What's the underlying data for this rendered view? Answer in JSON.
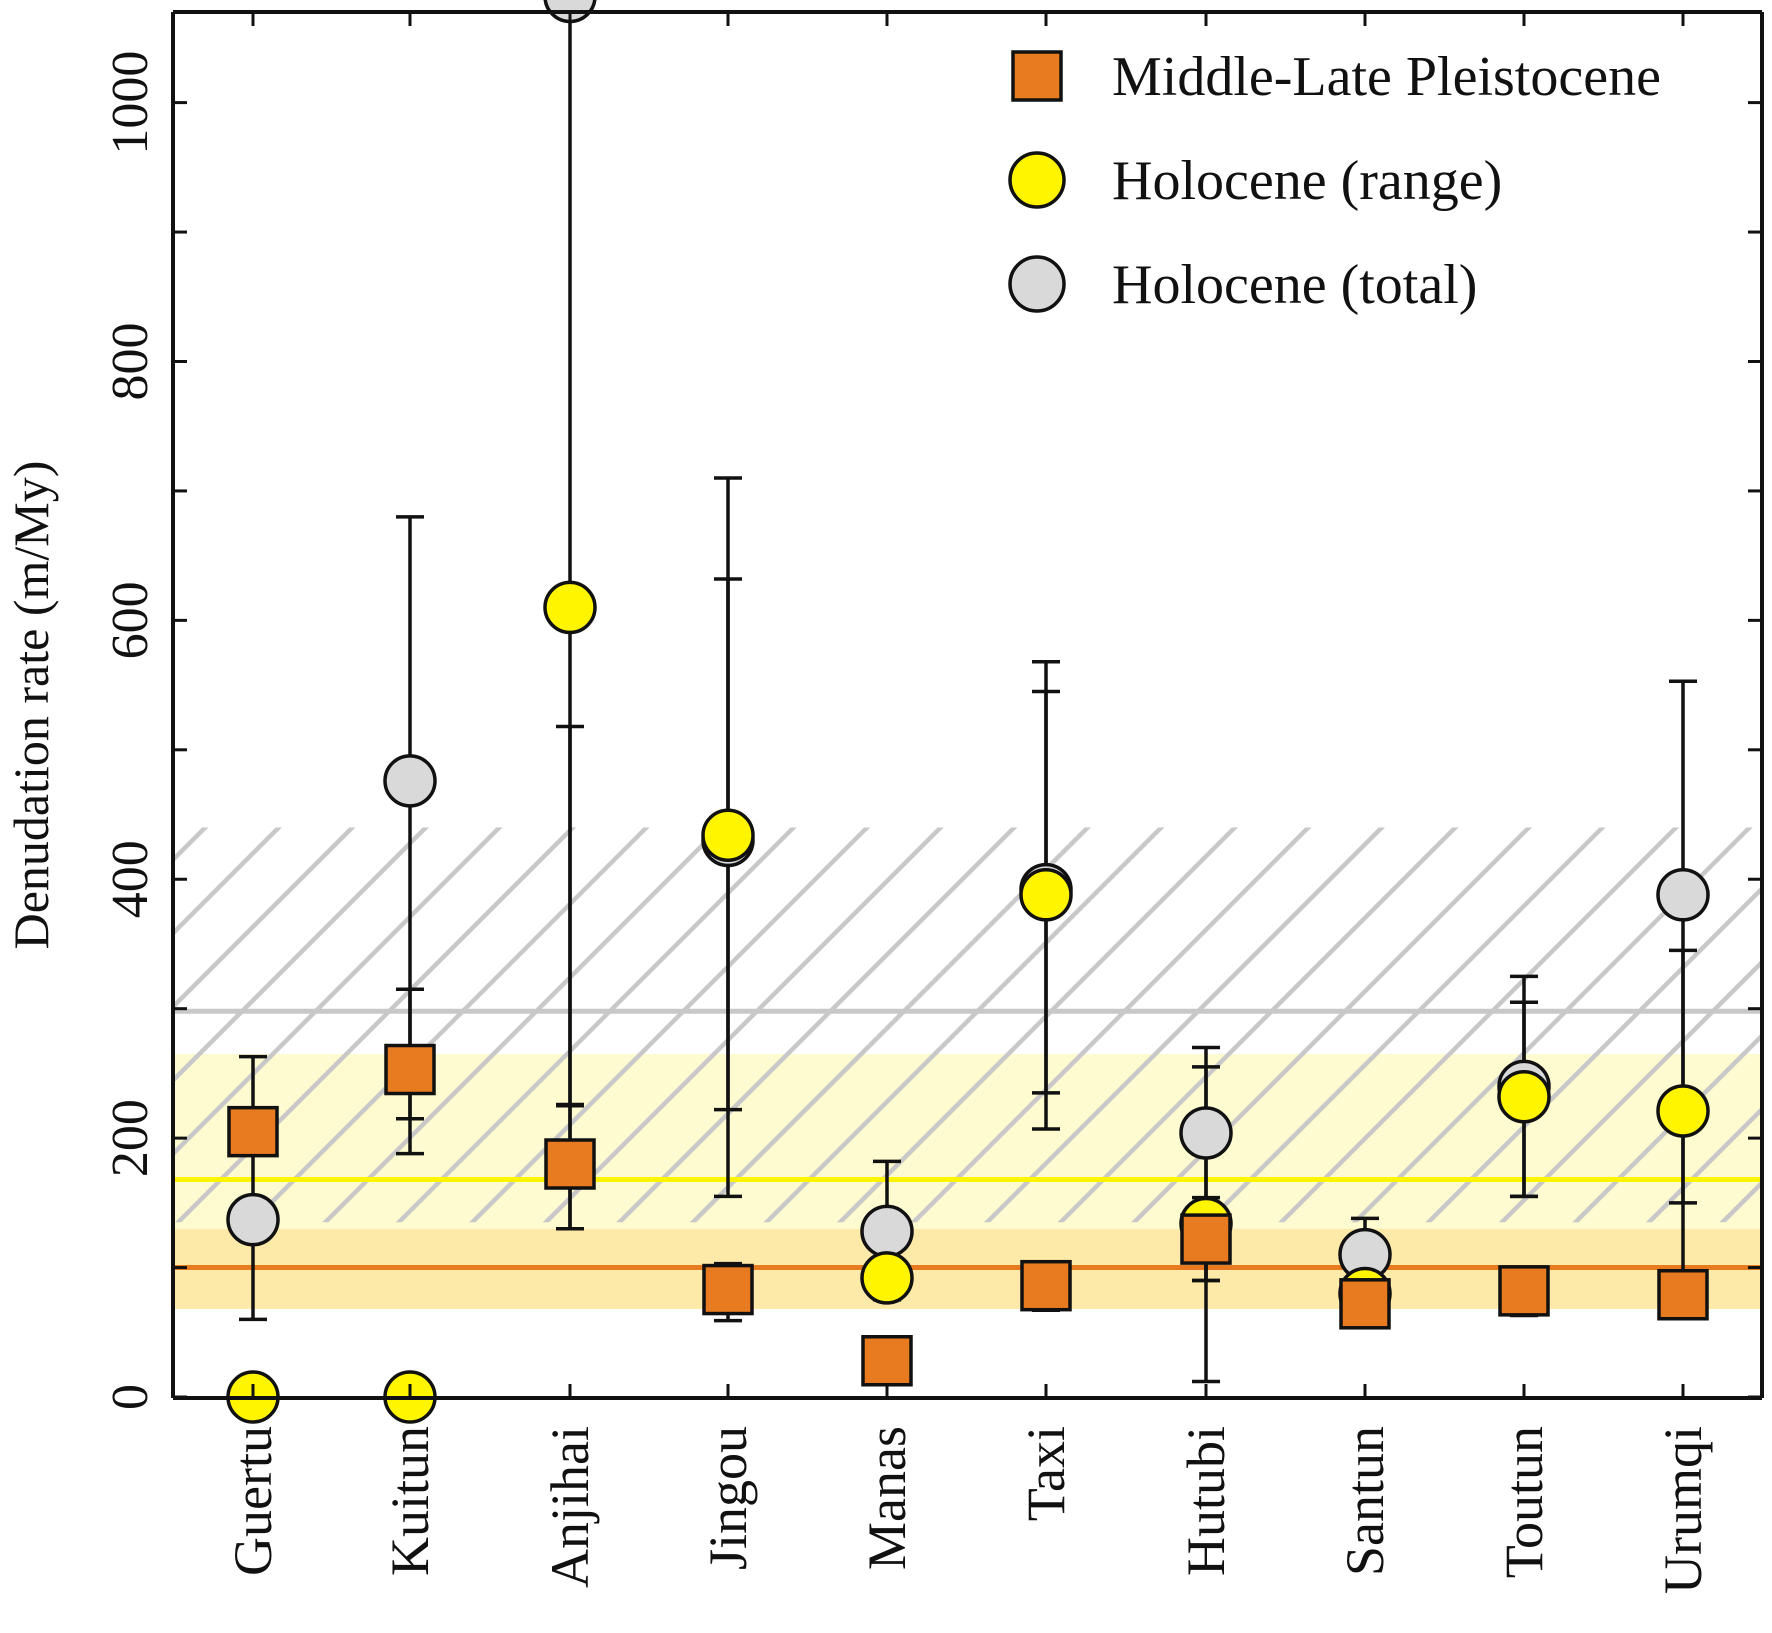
{
  "chart_data": {
    "type": "scatter",
    "title": "",
    "xlabel": "",
    "ylabel": "Denudation rate (m/My)",
    "ylim": [
      0,
      1070
    ],
    "yticks": [
      0,
      200,
      400,
      600,
      800,
      1000
    ],
    "y_minor_ticks": [
      100,
      300,
      500,
      700,
      900
    ],
    "categories": [
      "Guertu",
      "Kuitun",
      "Anjihai",
      "Jingou",
      "Manas",
      "Taxi",
      "Hutubi",
      "Santun",
      "Toutun",
      "Urumqi"
    ],
    "legend_position": "top-right",
    "series": [
      {
        "name": "Middle-Late Pleistocene",
        "marker": "square",
        "color": "#e87b1f",
        "values": [
          205,
          253,
          180,
          83,
          28,
          86,
          122,
          72,
          82,
          79
        ],
        "errors": [
          [
            60,
            263
          ],
          [
            188,
            315
          ],
          [
            130,
            226
          ],
          [
            59,
            103
          ],
          null,
          [
            67,
            100
          ],
          [
            90,
            154
          ],
          [
            55,
            90
          ],
          [
            63,
            98
          ],
          [
            61,
            96
          ]
        ]
      },
      {
        "name": "Holocene (range)",
        "marker": "circle",
        "color": "#fff500",
        "values": [
          0,
          0,
          610,
          434,
          92,
          388,
          134,
          80,
          232,
          221
        ],
        "errors": [
          null,
          null,
          [
            130,
            518
          ],
          [
            155,
            632
          ],
          [
            75,
            182
          ],
          [
            207,
            545
          ],
          [
            12,
            255
          ],
          [
            60,
            138
          ],
          [
            155,
            305
          ],
          [
            150,
            345
          ]
        ]
      },
      {
        "name": "Holocene (total)",
        "marker": "circle",
        "color": "#d9d9d9",
        "values": [
          137,
          476,
          1082,
          430,
          128,
          392,
          204,
          110,
          240,
          388
        ],
        "errors": [
          null,
          [
            215,
            680
          ],
          [
            225,
            1082
          ],
          [
            222,
            710
          ],
          null,
          [
            235,
            568
          ],
          [
            90,
            270
          ],
          null,
          [
            155,
            325
          ],
          [
            95,
            553
          ]
        ]
      }
    ],
    "bands": [
      {
        "color": "#fde9a8",
        "range": [
          68,
          130
        ],
        "center": 100,
        "line_color": "#e87b1f"
      },
      {
        "color": "#fffbd0",
        "range": [
          130,
          265
        ],
        "center": 168,
        "line_color": "#fff500"
      },
      {
        "color": "#c8c8c8",
        "range": [
          135,
          440
        ],
        "center": 298,
        "line_color": "#c8c8c8",
        "hatched": true
      }
    ]
  }
}
